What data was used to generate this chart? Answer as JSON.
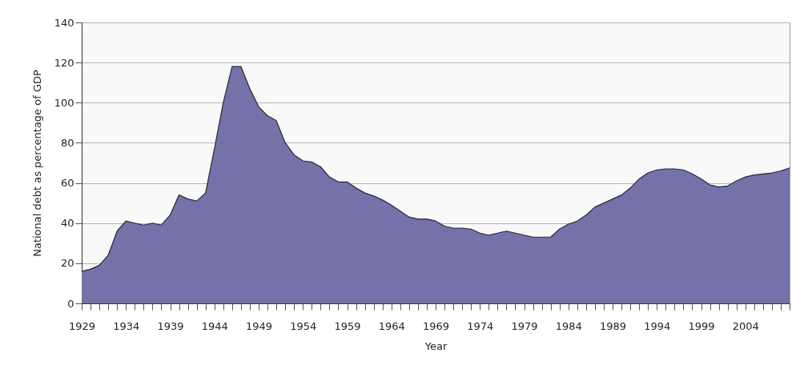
{
  "chart_data": {
    "type": "area",
    "xlabel": "Year",
    "ylabel": "National debt as percentage of GDP",
    "x": [
      1929,
      1930,
      1931,
      1932,
      1933,
      1934,
      1935,
      1936,
      1937,
      1938,
      1939,
      1940,
      1941,
      1942,
      1943,
      1944,
      1945,
      1946,
      1947,
      1948,
      1949,
      1950,
      1951,
      1952,
      1953,
      1954,
      1955,
      1956,
      1957,
      1958,
      1959,
      1960,
      1961,
      1962,
      1963,
      1964,
      1965,
      1966,
      1967,
      1968,
      1969,
      1970,
      1971,
      1972,
      1973,
      1974,
      1975,
      1976,
      1977,
      1978,
      1979,
      1980,
      1981,
      1982,
      1983,
      1984,
      1985,
      1986,
      1987,
      1988,
      1989,
      1990,
      1991,
      1992,
      1993,
      1994,
      1995,
      1996,
      1997,
      1998,
      1999,
      2000,
      2001,
      2002,
      2003,
      2004,
      2005,
      2006,
      2007,
      2008,
      2009
    ],
    "series": [
      {
        "color": "#7472a8",
        "values": [
          16,
          17,
          19,
          24,
          36,
          41,
          40,
          39,
          40,
          39,
          44,
          54,
          52,
          51,
          55,
          77,
          100,
          118,
          118,
          107,
          98,
          93.5,
          91,
          80,
          74,
          71,
          70.5,
          68,
          63,
          60.5,
          60.5,
          57.5,
          55,
          53.5,
          51.5,
          49,
          46,
          43,
          42,
          42,
          41,
          38.5,
          37.5,
          37.5,
          37,
          35,
          34,
          35,
          36,
          35,
          34,
          33,
          33,
          33,
          37,
          39.5,
          41,
          44,
          48,
          50,
          52,
          54,
          57.5,
          62,
          65,
          66.5,
          67,
          67,
          66.5,
          64.5,
          62,
          59,
          58,
          58.5,
          61,
          63,
          64,
          64.5,
          65,
          66,
          67.5
        ]
      }
    ],
    "xlim": [
      1929,
      2009
    ],
    "ylim": [
      0,
      140
    ],
    "xticks": [
      1929,
      {
        "value": 1930,
        "label": null
      },
      {
        "value": 1931,
        "label": null
      },
      {
        "value": 1932,
        "label": null
      },
      {
        "value": 1933,
        "label": null
      },
      1934,
      {
        "value": 1935,
        "label": null
      },
      {
        "value": 1936,
        "label": null
      },
      {
        "value": 1937,
        "label": null
      },
      {
        "value": 1938,
        "label": null
      },
      1939,
      {
        "value": 1940,
        "label": null
      },
      {
        "value": 1941,
        "label": null
      },
      {
        "value": 1942,
        "label": null
      },
      {
        "value": 1943,
        "label": null
      },
      1944,
      {
        "value": 1945,
        "label": null
      },
      {
        "value": 1946,
        "label": null
      },
      {
        "value": 1947,
        "label": null
      },
      {
        "value": 1948,
        "label": null
      },
      1949,
      {
        "value": 1950,
        "label": null
      },
      {
        "value": 1951,
        "label": null
      },
      {
        "value": 1952,
        "label": null
      },
      {
        "value": 1953,
        "label": null
      },
      1954,
      {
        "value": 1955,
        "label": null
      },
      {
        "value": 1956,
        "label": null
      },
      {
        "value": 1957,
        "label": null
      },
      {
        "value": 1958,
        "label": null
      },
      1959,
      {
        "value": 1960,
        "label": null
      },
      {
        "value": 1961,
        "label": null
      },
      {
        "value": 1962,
        "label": null
      },
      {
        "value": 1963,
        "label": null
      },
      1964,
      {
        "value": 1965,
        "label": null
      },
      {
        "value": 1966,
        "label": null
      },
      {
        "value": 1967,
        "label": null
      },
      {
        "value": 1968,
        "label": null
      },
      1969,
      {
        "value": 1970,
        "label": null
      },
      {
        "value": 1971,
        "label": null
      },
      {
        "value": 1972,
        "label": null
      },
      {
        "value": 1973,
        "label": null
      },
      1974,
      {
        "value": 1975,
        "label": null
      },
      {
        "value": 1976,
        "label": null
      },
      {
        "value": 1977,
        "label": null
      },
      {
        "value": 1978,
        "label": null
      },
      1979,
      {
        "value": 1980,
        "label": null
      },
      {
        "value": 1981,
        "label": null
      },
      {
        "value": 1982,
        "label": null
      },
      {
        "value": 1983,
        "label": null
      },
      1984,
      {
        "value": 1985,
        "label": null
      },
      {
        "value": 1986,
        "label": null
      },
      {
        "value": 1987,
        "label": null
      },
      {
        "value": 1988,
        "label": null
      },
      1989,
      {
        "value": 1990,
        "label": null
      },
      {
        "value": 1991,
        "label": null
      },
      {
        "value": 1992,
        "label": null
      },
      {
        "value": 1993,
        "label": null
      },
      1994,
      {
        "value": 1995,
        "label": null
      },
      {
        "value": 1996,
        "label": null
      },
      {
        "value": 1997,
        "label": null
      },
      {
        "value": 1998,
        "label": null
      },
      1999,
      {
        "value": 2000,
        "label": null
      },
      {
        "value": 2001,
        "label": null
      },
      {
        "value": 2002,
        "label": null
      },
      {
        "value": 2003,
        "label": null
      },
      2004,
      {
        "value": 2005,
        "label": null
      },
      {
        "value": 2006,
        "label": null
      },
      {
        "value": 2007,
        "label": null
      },
      {
        "value": 2008,
        "label": null
      },
      {
        "value": 2009,
        "label": null
      }
    ],
    "yticks": [
      0,
      20,
      40,
      60,
      80,
      100,
      120,
      140
    ],
    "grid": "y"
  }
}
